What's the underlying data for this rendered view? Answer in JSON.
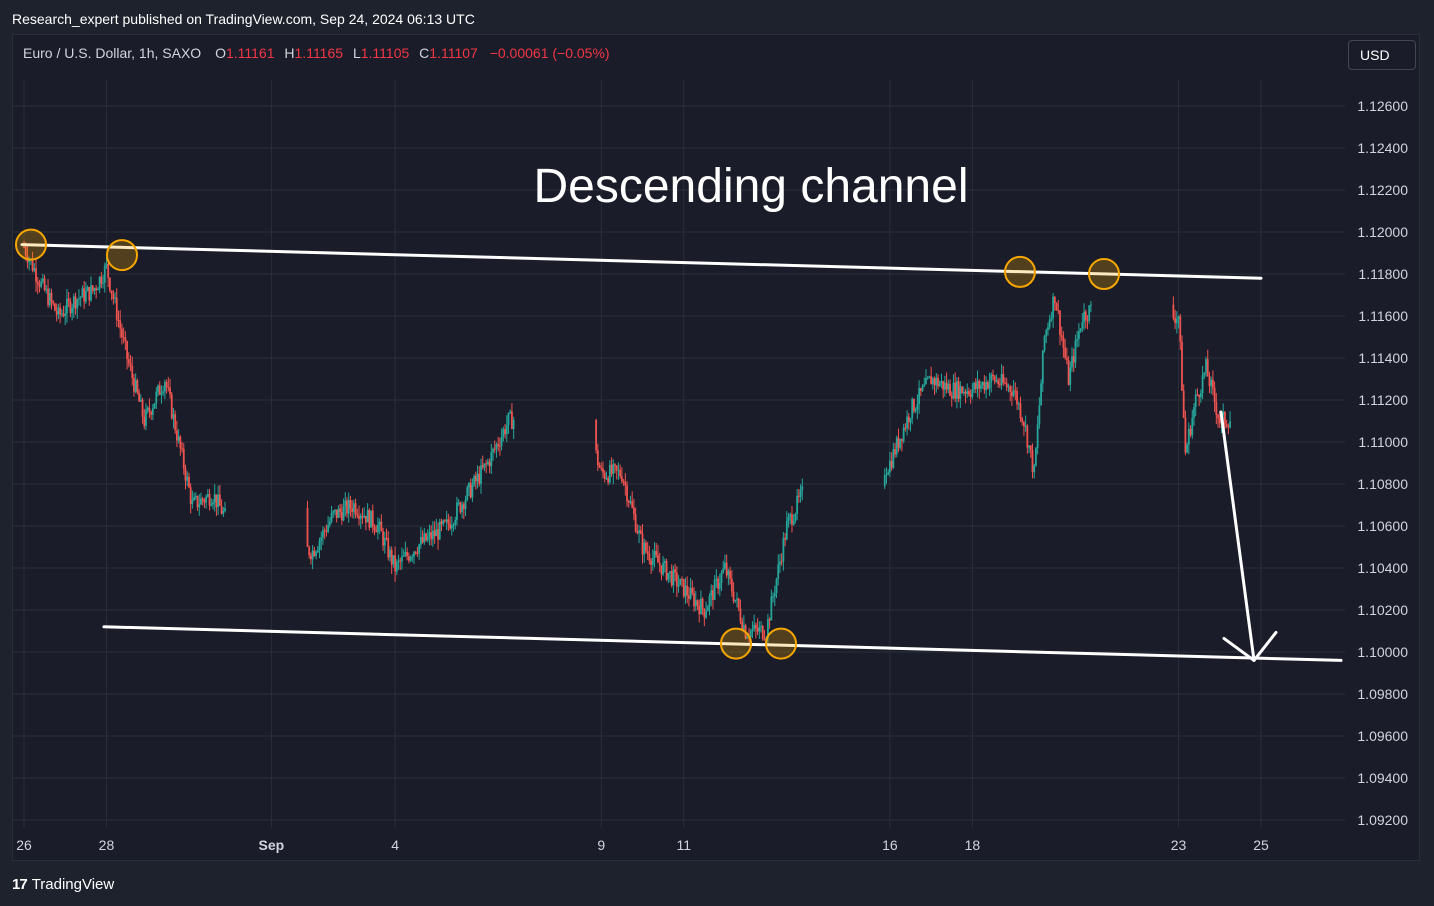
{
  "header": {
    "published": "Research_expert published on TradingView.com, Sep 24, 2024 06:13 UTC"
  },
  "symbol": {
    "name": "Euro / U.S. Dollar, 1h, SAXO",
    "o_label": "O",
    "o_value": "1.11161",
    "h_label": "H",
    "h_value": "1.11165",
    "l_label": "L",
    "l_value": "1.11105",
    "c_label": "C",
    "c_value": "1.11107",
    "change": "−0.00061 (−0.05%)"
  },
  "currency_button": "USD",
  "footer": {
    "logo_mark": "17",
    "logo_text": "TradingView"
  },
  "colors": {
    "up": "#26a69a",
    "down": "#ef5350",
    "marker": "#f7a600",
    "background": "#1a1d29",
    "grid": "#2a2e39",
    "lines": "#ffffff"
  },
  "chart_data": {
    "type": "candlestick",
    "title": "Descending channel",
    "x_ticks": [
      "26",
      "28",
      "Sep",
      "4",
      "9",
      "11",
      "16",
      "18",
      "23",
      "25"
    ],
    "y_ticks": [
      "1.12600",
      "1.12400",
      "1.12200",
      "1.12000",
      "1.11800",
      "1.11600",
      "1.11400",
      "1.11200",
      "1.11000",
      "1.10800",
      "1.10600",
      "1.10400",
      "1.10200",
      "1.10000",
      "1.09800",
      "1.09600",
      "1.09400",
      "1.09200"
    ],
    "ylim": [
      1.092,
      1.126
    ],
    "grid": true,
    "price_path": [
      {
        "x": "Aug 26 00:00",
        "y": 1.1193
      },
      {
        "x": "Aug 26 10:00",
        "y": 1.1175
      },
      {
        "x": "Aug 26 20:00",
        "y": 1.116
      },
      {
        "x": "Aug 27 06:00",
        "y": 1.1168
      },
      {
        "x": "Aug 27 16:00",
        "y": 1.1172
      },
      {
        "x": "Aug 28 00:00",
        "y": 1.1183
      },
      {
        "x": "Aug 28 12:00",
        "y": 1.114
      },
      {
        "x": "Aug 28 22:00",
        "y": 1.111
      },
      {
        "x": "Aug 29 10:00",
        "y": 1.113
      },
      {
        "x": "Aug 29 18:00",
        "y": 1.11
      },
      {
        "x": "Aug 30 02:00",
        "y": 1.107
      },
      {
        "x": "Aug 30 14:00",
        "y": 1.1075
      },
      {
        "x": "Aug 31 00:00",
        "y": 1.106
      },
      {
        "x": "Sep 1 12:00",
        "y": 1.105
      },
      {
        "x": "Sep 2 00:00",
        "y": 1.1048
      },
      {
        "x": "Sep 2 12:00",
        "y": 1.1065
      },
      {
        "x": "Sep 3 00:00",
        "y": 1.107
      },
      {
        "x": "Sep 3 14:00",
        "y": 1.106
      },
      {
        "x": "Sep 4 00:00",
        "y": 1.104
      },
      {
        "x": "Sep 4 12:00",
        "y": 1.105
      },
      {
        "x": "Sep 5 06:00",
        "y": 1.106
      },
      {
        "x": "Sep 5 18:00",
        "y": 1.1075
      },
      {
        "x": "Sep 6 06:00",
        "y": 1.109
      },
      {
        "x": "Sep 6 18:00",
        "y": 1.111
      },
      {
        "x": "Sep 7 12:00",
        "y": 1.1115
      },
      {
        "x": "Sep 8 12:00",
        "y": 1.112
      },
      {
        "x": "Sep 9 00:00",
        "y": 1.1085
      },
      {
        "x": "Sep 9 12:00",
        "y": 1.1085
      },
      {
        "x": "Sep 10 00:00",
        "y": 1.105
      },
      {
        "x": "Sep 10 12:00",
        "y": 1.104
      },
      {
        "x": "Sep 11 00:00",
        "y": 1.103
      },
      {
        "x": "Sep 11 12:00",
        "y": 1.102
      },
      {
        "x": "Sep 12 00:00",
        "y": 1.104
      },
      {
        "x": "Sep 12 12:00",
        "y": 1.101
      },
      {
        "x": "Sep 13 00:00",
        "y": 1.101
      },
      {
        "x": "Sep 13 12:00",
        "y": 1.106
      },
      {
        "x": "Sep 14 00:00",
        "y": 1.108
      },
      {
        "x": "Sep 15 00:00",
        "y": 1.1085
      },
      {
        "x": "Sep 15 12:00",
        "y": 1.1078
      },
      {
        "x": "Sep 16 00:00",
        "y": 1.109
      },
      {
        "x": "Sep 16 12:00",
        "y": 1.1115
      },
      {
        "x": "Sep 17 00:00",
        "y": 1.113
      },
      {
        "x": "Sep 17 12:00",
        "y": 1.1125
      },
      {
        "x": "Sep 18 00:00",
        "y": 1.1125
      },
      {
        "x": "Sep 18 12:00",
        "y": 1.113
      },
      {
        "x": "Sep 19 00:00",
        "y": 1.1125
      },
      {
        "x": "Sep 19 06:00",
        "y": 1.111
      },
      {
        "x": "Sep 19 12:00",
        "y": 1.1085
      },
      {
        "x": "Sep 19 18:00",
        "y": 1.115
      },
      {
        "x": "Sep 20 00:00",
        "y": 1.117
      },
      {
        "x": "Sep 20 08:00",
        "y": 1.113
      },
      {
        "x": "Sep 20 16:00",
        "y": 1.116
      },
      {
        "x": "Sep 21 00:00",
        "y": 1.1165
      },
      {
        "x": "Sep 22 00:00",
        "y": 1.117
      },
      {
        "x": "Sep 22 12:00",
        "y": 1.116
      },
      {
        "x": "Sep 23 00:00",
        "y": 1.116
      },
      {
        "x": "Sep 23 04:00",
        "y": 1.1095
      },
      {
        "x": "Sep 23 10:00",
        "y": 1.112
      },
      {
        "x": "Sep 23 16:00",
        "y": 1.1135
      },
      {
        "x": "Sep 24 00:00",
        "y": 1.111
      },
      {
        "x": "Sep 24 06:00",
        "y": 1.1111
      }
    ],
    "upper_trendline": [
      {
        "x": "Aug 26",
        "y": 1.1194
      },
      {
        "x": "Sep 25",
        "y": 1.1178
      }
    ],
    "lower_trendline": [
      {
        "x": "Aug 27",
        "y": 1.1012
      },
      {
        "x": "Sep 25",
        "y": 1.0996
      }
    ],
    "touch_points": [
      {
        "x": "Aug 26",
        "y": 1.1194
      },
      {
        "x": "Aug 27",
        "y": 1.1189
      },
      {
        "x": "Sep 19",
        "y": 1.1181
      },
      {
        "x": "Sep 20",
        "y": 1.118
      },
      {
        "x": "Sep 12",
        "y": 1.1004
      },
      {
        "x": "Sep 13",
        "y": 1.1004
      }
    ],
    "projection_arrow": [
      {
        "x": "Sep 24",
        "y": 1.111
      },
      {
        "x": "Sep 25",
        "y": 1.0996
      }
    ]
  }
}
